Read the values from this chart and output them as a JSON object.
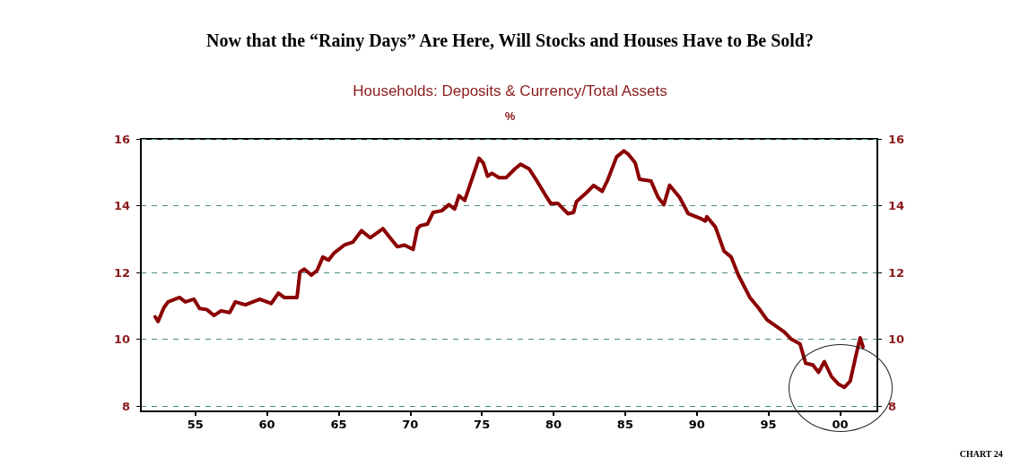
{
  "chart_data": {
    "type": "line",
    "title": "Now that the “Rainy Days” Are Here, Will Stocks and Houses Have to Be Sold?",
    "subtitle": "Households: Deposits & Currency/Total Assets",
    "annotations": [
      "%",
      "CHART 24"
    ],
    "x": [
      1952.2,
      1952.4,
      1952.8,
      1953.1,
      1953.9,
      1954.3,
      1954.9,
      1955.3,
      1955.8,
      1956.3,
      1956.8,
      1957.4,
      1957.8,
      1958.5,
      1959.5,
      1960.3,
      1960.8,
      1961.2,
      1962.1,
      1962.3,
      1962.6,
      1963.1,
      1963.5,
      1963.9,
      1964.3,
      1964.7,
      1965.4,
      1966,
      1966.6,
      1967.2,
      1968.1,
      1968.5,
      1969.1,
      1969.6,
      1970.2,
      1970.5,
      1970.7,
      1971.2,
      1971.6,
      1972.2,
      1972.7,
      1973.1,
      1973.4,
      1973.8,
      1974.2,
      1974.8,
      1975.1,
      1975.4,
      1975.7,
      1976.2,
      1976.7,
      1977.3,
      1977.7,
      1978.3,
      1978.9,
      1979.4,
      1979.8,
      1980.3,
      1981,
      1981.4,
      1981.6,
      1982.3,
      1982.8,
      1983.4,
      1983.8,
      1984.4,
      1984.9,
      1985.2,
      1985.7,
      1986,
      1986.8,
      1987.3,
      1987.7,
      1988.1,
      1988.8,
      1989.4,
      1990.2,
      1990.6,
      1990.7,
      1991.3,
      1991.9,
      1992.4,
      1992.9,
      1993.7,
      1994.3,
      1994.9,
      1995.5,
      1996.1,
      1996.6,
      1997.2,
      1997.6,
      1998.1,
      1998.5,
      1998.9,
      1999.4,
      1999.9,
      2000.3,
      2000.7,
      2001.1,
      2001.4,
      2001.6
    ],
    "series": [
      {
        "color": "#8b0000",
        "values": [
          10.67,
          10.53,
          10.94,
          11.12,
          11.25,
          11.12,
          11.2,
          10.92,
          10.89,
          10.71,
          10.85,
          10.8,
          11.12,
          11.03,
          11.2,
          11.07,
          11.38,
          11.25,
          11.25,
          12.01,
          12.1,
          11.92,
          12.06,
          12.46,
          12.37,
          12.59,
          12.82,
          12.91,
          13.25,
          13.04,
          13.31,
          13.09,
          12.77,
          12.82,
          12.69,
          13.31,
          13.4,
          13.45,
          13.8,
          13.85,
          14.03,
          13.9,
          14.3,
          14.16,
          14.66,
          15.42,
          15.28,
          14.88,
          14.97,
          14.84,
          14.84,
          15.1,
          15.24,
          15.1,
          14.7,
          14.34,
          14.07,
          14.07,
          13.76,
          13.8,
          14.12,
          14.39,
          14.61,
          14.43,
          14.79,
          15.46,
          15.64,
          15.55,
          15.28,
          14.79,
          14.74,
          14.25,
          14.03,
          14.61,
          14.25,
          13.76,
          13.63,
          13.54,
          13.67,
          13.36,
          12.64,
          12.46,
          11.92,
          11.25,
          10.94,
          10.58,
          10.4,
          10.22,
          10.0,
          9.86,
          9.28,
          9.23,
          9.01,
          9.33,
          8.88,
          8.65,
          8.56,
          8.74,
          9.5,
          10.04,
          9.77
        ]
      }
    ],
    "xlim": [
      1951.2,
      2002.6
    ],
    "xticks": [
      {
        "value": 1955,
        "label": "55"
      },
      {
        "value": 1960,
        "label": "60"
      },
      {
        "value": 1965,
        "label": "65"
      },
      {
        "value": 1970,
        "label": "70"
      },
      {
        "value": 1975,
        "label": "75"
      },
      {
        "value": 1980,
        "label": "80"
      },
      {
        "value": 1985,
        "label": "85"
      },
      {
        "value": 1990,
        "label": "90"
      },
      {
        "value": 1995,
        "label": "95"
      },
      {
        "value": 2000,
        "label": "00"
      }
    ],
    "ylim": [
      7.84,
      16
    ],
    "yticks": [
      8,
      10,
      12,
      14,
      16
    ],
    "y2lim": [
      7.84,
      16
    ],
    "y2ticks": [
      8,
      10,
      12,
      14,
      16
    ],
    "grid": "y",
    "marker": "none",
    "line_style": "solid"
  }
}
